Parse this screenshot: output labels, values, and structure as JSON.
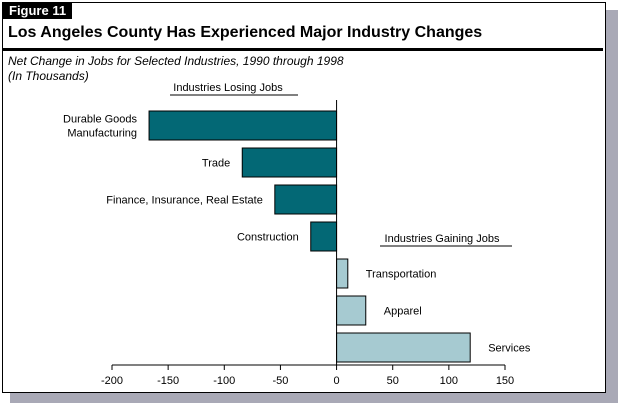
{
  "figure": {
    "label": "Figure 11",
    "title": "Los Angeles County Has Experienced Major Industry Changes",
    "subtitle_line1": "Net Change in Jobs for Selected Industries, 1990 through 1998",
    "subtitle_line2": "(In Thousands)"
  },
  "colors": {
    "losing": "#036875",
    "gaining": "#a6cad1",
    "shadow": "#a9a9b6"
  },
  "chart_data": {
    "type": "bar",
    "orientation": "horizontal",
    "xlim": [
      -200,
      150
    ],
    "xticks": [
      -200,
      -150,
      -100,
      -50,
      0,
      50,
      100,
      150
    ],
    "grid": false,
    "groups": [
      {
        "name": "Industries Losing Jobs",
        "categories": [
          "Durable Goods Manufacturing",
          "Trade",
          "Finance, Insurance, Real Estate",
          "Construction"
        ],
        "values": [
          -167,
          -84,
          -55,
          -23
        ]
      },
      {
        "name": "Industries Gaining Jobs",
        "categories": [
          "Transportation",
          "Apparel",
          "Services"
        ],
        "values": [
          10,
          26,
          119
        ]
      }
    ],
    "bars": [
      {
        "label_lines": [
          "Durable Goods",
          "Manufacturing"
        ],
        "value": -167
      },
      {
        "label_lines": [
          "Trade"
        ],
        "value": -84
      },
      {
        "label_lines": [
          "Finance, Insurance, Real Estate"
        ],
        "value": -55
      },
      {
        "label_lines": [
          "Construction"
        ],
        "value": -23
      },
      {
        "label_lines": [
          "Transportation"
        ],
        "value": 10
      },
      {
        "label_lines": [
          "Apparel"
        ],
        "value": 26
      },
      {
        "label_lines": [
          "Services"
        ],
        "value": 119
      }
    ]
  }
}
